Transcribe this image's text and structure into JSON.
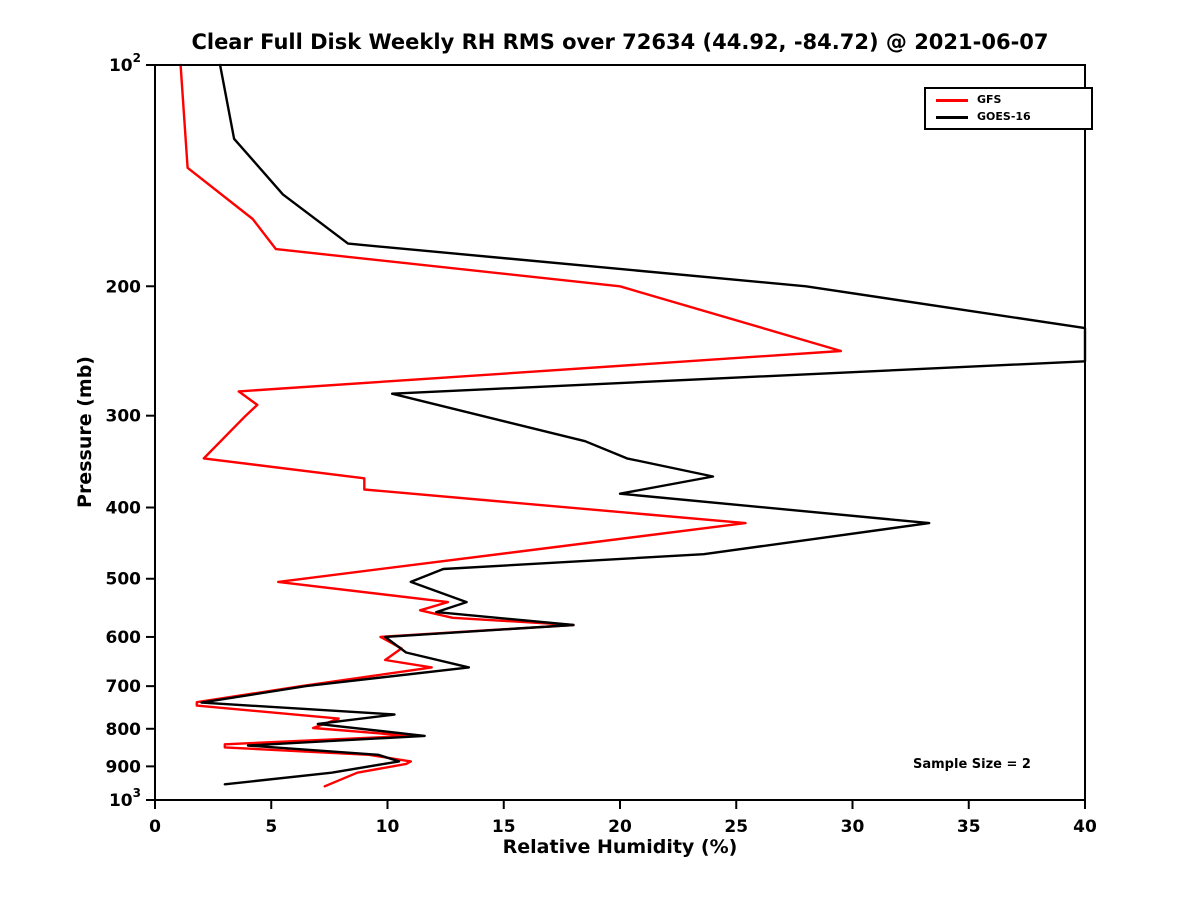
{
  "chart_data": {
    "type": "line",
    "title": "Clear Full Disk Weekly RH RMS over 72634 (44.92, -84.72) @ 2021-06-07",
    "xlabel": "Relative Humidity (%)",
    "ylabel": "Pressure (mb)",
    "xlim": [
      0,
      40
    ],
    "ylim": [
      100,
      1000
    ],
    "y_scale": "log",
    "y_inverted": true,
    "grid": false,
    "legend_position": "top-right",
    "annotation": "Sample Size = 2",
    "x_ticks": [
      0,
      5,
      10,
      15,
      20,
      25,
      30,
      35,
      40
    ],
    "y_ticks": [
      {
        "v": 100,
        "label": "10^2"
      },
      {
        "v": 200,
        "label": "200"
      },
      {
        "v": 300,
        "label": "300"
      },
      {
        "v": 400,
        "label": "400"
      },
      {
        "v": 500,
        "label": "500"
      },
      {
        "v": 600,
        "label": "600"
      },
      {
        "v": 700,
        "label": "700"
      },
      {
        "v": 800,
        "label": "800"
      },
      {
        "v": 900,
        "label": "900"
      },
      {
        "v": 1000,
        "label": "10^3"
      }
    ],
    "series": [
      {
        "name": "GFS",
        "color": "#ff0000",
        "points": [
          [
            100,
            1.1
          ],
          [
            138,
            1.4
          ],
          [
            162,
            4.2
          ],
          [
            178,
            5.2
          ],
          [
            200,
            20.0
          ],
          [
            245,
            29.5
          ],
          [
            278,
            3.6
          ],
          [
            290,
            4.4
          ],
          [
            300,
            3.9
          ],
          [
            343,
            2.1
          ],
          [
            365,
            9.0
          ],
          [
            378,
            9.0
          ],
          [
            420,
            25.4
          ],
          [
            505,
            5.3
          ],
          [
            538,
            12.6
          ],
          [
            552,
            11.4
          ],
          [
            565,
            12.8
          ],
          [
            578,
            18.0
          ],
          [
            600,
            9.7
          ],
          [
            622,
            10.6
          ],
          [
            645,
            9.9
          ],
          [
            660,
            11.9
          ],
          [
            700,
            6.3
          ],
          [
            736,
            1.8
          ],
          [
            744,
            1.8
          ],
          [
            775,
            7.9
          ],
          [
            798,
            6.8
          ],
          [
            818,
            11.0
          ],
          [
            840,
            3.0
          ],
          [
            848,
            3.0
          ],
          [
            868,
            9.2
          ],
          [
            886,
            11.0
          ],
          [
            893,
            10.8
          ],
          [
            918,
            8.7
          ],
          [
            958,
            7.3
          ]
        ]
      },
      {
        "name": "GOES-16",
        "color": "#000000",
        "points": [
          [
            100,
            2.8
          ],
          [
            126,
            3.4
          ],
          [
            150,
            5.5
          ],
          [
            175,
            8.3
          ],
          [
            200,
            28.0
          ],
          [
            228,
            40.0
          ],
          [
            253,
            40.0
          ],
          [
            280,
            10.2
          ],
          [
            325,
            18.5
          ],
          [
            343,
            20.3
          ],
          [
            363,
            24.0
          ],
          [
            383,
            20.0
          ],
          [
            420,
            33.3
          ],
          [
            463,
            23.6
          ],
          [
            485,
            12.4
          ],
          [
            505,
            11.0
          ],
          [
            538,
            13.4
          ],
          [
            555,
            12.1
          ],
          [
            578,
            18.0
          ],
          [
            600,
            9.9
          ],
          [
            630,
            10.8
          ],
          [
            660,
            13.5
          ],
          [
            700,
            6.5
          ],
          [
            737,
            2.0
          ],
          [
            765,
            10.3
          ],
          [
            788,
            7.0
          ],
          [
            818,
            11.6
          ],
          [
            843,
            4.0
          ],
          [
            868,
            9.6
          ],
          [
            886,
            10.5
          ],
          [
            918,
            7.6
          ],
          [
            952,
            3.0
          ]
        ]
      }
    ]
  }
}
